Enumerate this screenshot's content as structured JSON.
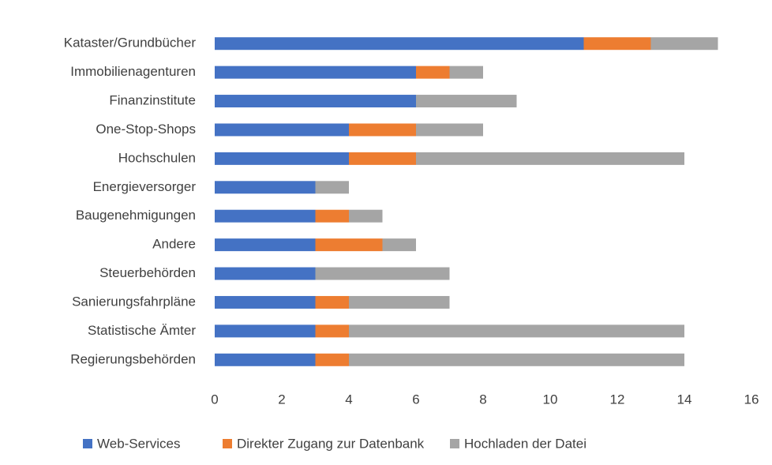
{
  "chart_data": {
    "type": "bar",
    "orientation": "horizontal",
    "stacked": true,
    "categories": [
      "Kataster/Grundbücher",
      "Immobilienagenturen",
      "Finanzinstitute",
      "One-Stop-Shops",
      "Hochschulen",
      "Energieversorger",
      "Baugenehmigungen",
      "Andere",
      "Steuerbehörden",
      "Sanierungsfahrpläne",
      "Statistische Ämter",
      "Regierungsbehörden"
    ],
    "series": [
      {
        "name": "Web-Services",
        "color": "#4472c4",
        "values": [
          11,
          6,
          6,
          4,
          4,
          3,
          3,
          3,
          3,
          3,
          3,
          3
        ]
      },
      {
        "name": "Direkter Zugang zur Datenbank",
        "color": "#ed7d31",
        "values": [
          2,
          1,
          0,
          2,
          2,
          0,
          1,
          2,
          0,
          1,
          1,
          1
        ]
      },
      {
        "name": "Hochladen der Datei",
        "color": "#a5a5a5",
        "values": [
          2,
          1,
          3,
          2,
          8,
          1,
          1,
          1,
          4,
          3,
          10,
          10
        ]
      }
    ],
    "xlim": [
      0,
      16
    ],
    "xticks": [
      0,
      2,
      4,
      6,
      8,
      10,
      12,
      14,
      16
    ],
    "grid": false,
    "legend": "bottom"
  }
}
